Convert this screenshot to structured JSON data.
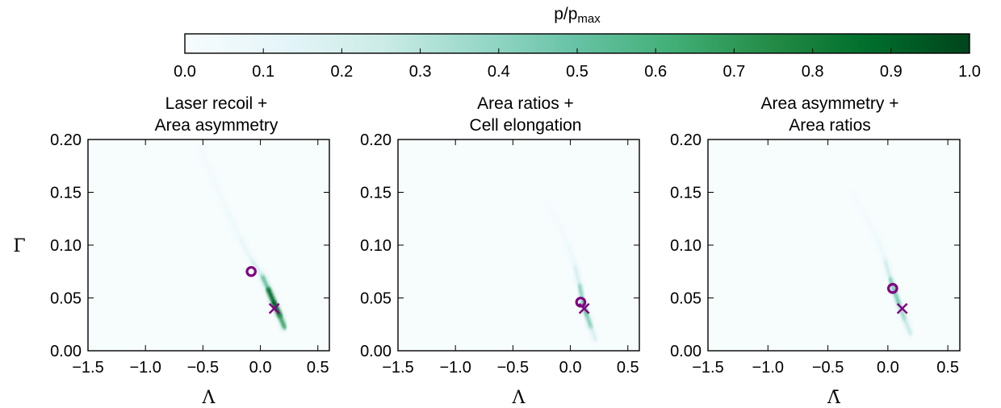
{
  "colorbar": {
    "label_main": "p/p",
    "label_sub": "max",
    "ticks": [
      "0.0",
      "0.1",
      "0.2",
      "0.3",
      "0.4",
      "0.5",
      "0.6",
      "0.7",
      "0.8",
      "0.9",
      "1.0"
    ],
    "range": [
      0.0,
      1.0
    ],
    "colors": [
      "#f7fcfd",
      "#e5f5f9",
      "#ccece6",
      "#99d8c9",
      "#66c2a4",
      "#41ae76",
      "#238b45",
      "#006d2c",
      "#00441b"
    ]
  },
  "chart_data": [
    {
      "type": "heatmap",
      "title_lines": [
        "Laser recoil +",
        "Area asymmetry"
      ],
      "xlabel": "Λ",
      "ylabel": "Γ",
      "xlim": [
        -1.5,
        0.6
      ],
      "ylim": [
        0.0,
        0.2
      ],
      "xticks": [
        "−1.5",
        "−1.0",
        "−0.5",
        "0.0",
        "0.5"
      ],
      "yticks": [
        "0.00",
        "0.05",
        "0.10",
        "0.15",
        "0.20"
      ],
      "density_ridge": [
        {
          "x": -0.52,
          "y": 0.19,
          "p": 0.04
        },
        {
          "x": -0.4,
          "y": 0.16,
          "p": 0.06
        },
        {
          "x": -0.28,
          "y": 0.13,
          "p": 0.08
        },
        {
          "x": -0.17,
          "y": 0.105,
          "p": 0.12
        },
        {
          "x": -0.07,
          "y": 0.085,
          "p": 0.18
        },
        {
          "x": 0.02,
          "y": 0.07,
          "p": 0.35
        },
        {
          "x": 0.07,
          "y": 0.058,
          "p": 0.75
        },
        {
          "x": 0.12,
          "y": 0.045,
          "p": 1.0
        },
        {
          "x": 0.17,
          "y": 0.033,
          "p": 0.85
        },
        {
          "x": 0.21,
          "y": 0.022,
          "p": 0.5
        }
      ],
      "markers": {
        "circle": {
          "x": -0.08,
          "y": 0.075
        },
        "cross": {
          "x": 0.12,
          "y": 0.04
        }
      }
    },
    {
      "type": "heatmap",
      "title_lines": [
        "Area ratios +",
        "Cell elongation"
      ],
      "xlabel": "Λ",
      "ylabel": "",
      "xlim": [
        -1.5,
        0.6
      ],
      "ylim": [
        0.0,
        0.2
      ],
      "xticks": [
        "−1.5",
        "−1.0",
        "−0.5",
        "0.0",
        "0.5"
      ],
      "yticks": [
        "0.00",
        "0.05",
        "0.10",
        "0.15",
        "0.20"
      ],
      "density_ridge": [
        {
          "x": -0.2,
          "y": 0.14,
          "p": 0.03
        },
        {
          "x": -0.1,
          "y": 0.12,
          "p": 0.05
        },
        {
          "x": -0.02,
          "y": 0.1,
          "p": 0.08
        },
        {
          "x": 0.04,
          "y": 0.08,
          "p": 0.15
        },
        {
          "x": 0.08,
          "y": 0.062,
          "p": 0.35
        },
        {
          "x": 0.11,
          "y": 0.045,
          "p": 0.55
        },
        {
          "x": 0.14,
          "y": 0.035,
          "p": 0.6
        },
        {
          "x": 0.18,
          "y": 0.022,
          "p": 0.35
        },
        {
          "x": 0.22,
          "y": 0.01,
          "p": 0.15
        }
      ],
      "markers": {
        "circle": {
          "x": 0.09,
          "y": 0.046
        },
        "cross": {
          "x": 0.12,
          "y": 0.04
        }
      }
    },
    {
      "type": "heatmap",
      "title_lines": [
        "Area asymmetry +",
        "Area ratios"
      ],
      "xlabel": "Λ̄",
      "ylabel": "",
      "xlim": [
        -1.5,
        0.6
      ],
      "ylim": [
        0.0,
        0.2
      ],
      "xticks": [
        "−1.5",
        "−1.0",
        "−0.5",
        "0.0",
        "0.5"
      ],
      "yticks": [
        "0.00",
        "0.05",
        "0.10",
        "0.15",
        "0.20"
      ],
      "density_ridge": [
        {
          "x": -0.3,
          "y": 0.15,
          "p": 0.03
        },
        {
          "x": -0.18,
          "y": 0.125,
          "p": 0.05
        },
        {
          "x": -0.08,
          "y": 0.105,
          "p": 0.08
        },
        {
          "x": -0.02,
          "y": 0.085,
          "p": 0.15
        },
        {
          "x": 0.02,
          "y": 0.068,
          "p": 0.4
        },
        {
          "x": 0.05,
          "y": 0.058,
          "p": 0.55
        },
        {
          "x": 0.09,
          "y": 0.045,
          "p": 0.45
        },
        {
          "x": 0.14,
          "y": 0.03,
          "p": 0.4
        },
        {
          "x": 0.19,
          "y": 0.016,
          "p": 0.2
        }
      ],
      "markers": {
        "circle": {
          "x": 0.04,
          "y": 0.059
        },
        "cross": {
          "x": 0.12,
          "y": 0.04
        }
      }
    }
  ],
  "marker_color": "#800080"
}
